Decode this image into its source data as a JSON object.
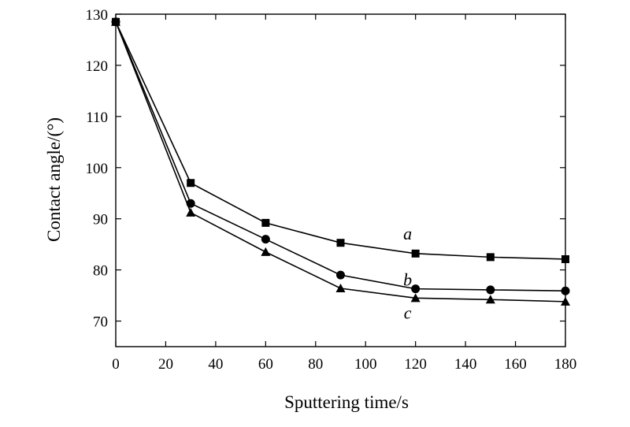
{
  "chart_data": {
    "type": "line",
    "xlabel": "Sputtering time/s",
    "ylabel": "Contact angle/(°)",
    "xlim": [
      0,
      180
    ],
    "ylim": [
      65,
      130
    ],
    "xticks": [
      0,
      20,
      40,
      60,
      80,
      100,
      120,
      140,
      160,
      180
    ],
    "yticks": [
      70,
      80,
      90,
      100,
      110,
      120,
      130
    ],
    "grid": false,
    "x": [
      0,
      30,
      60,
      90,
      120,
      150,
      180
    ],
    "series": [
      {
        "name": "a",
        "marker": "square",
        "values": [
          128.5,
          97,
          89.2,
          85.3,
          83.2,
          82.5,
          82.1
        ]
      },
      {
        "name": "b",
        "marker": "circle",
        "values": [
          128.5,
          93,
          86,
          79,
          76.3,
          76.1,
          75.9
        ]
      },
      {
        "name": "c",
        "marker": "triangle",
        "values": [
          128.5,
          91.2,
          83.5,
          76.4,
          74.5,
          74.2,
          73.8
        ]
      }
    ]
  }
}
